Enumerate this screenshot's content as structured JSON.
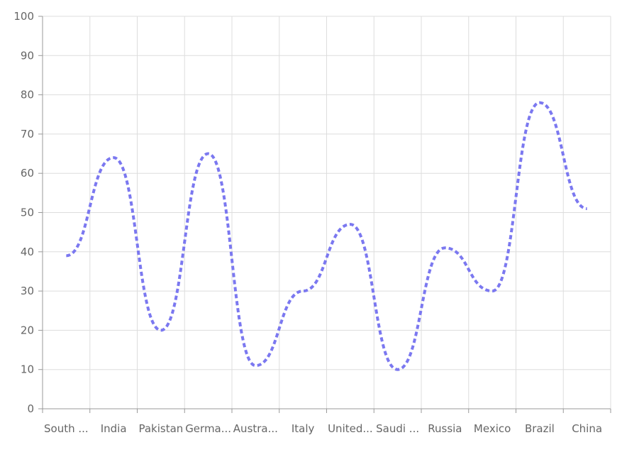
{
  "chart_data": {
    "type": "line",
    "categories": [
      "South ...",
      "India",
      "Pakistan",
      "Germa...",
      "Austra...",
      "Italy",
      "United...",
      "Saudi ...",
      "Russia",
      "Mexico",
      "Brazil",
      "China"
    ],
    "series": [
      {
        "values": [
          39,
          64,
          20,
          65,
          11,
          30,
          47,
          10,
          41,
          30,
          78,
          51
        ],
        "color": "#7b78f0"
      }
    ],
    "y_ticks": [
      "0",
      "10",
      "20",
      "30",
      "40",
      "50",
      "60",
      "70",
      "80",
      "90",
      "100"
    ],
    "ylim": [
      0,
      100
    ],
    "grid": true,
    "line_style": "dashed",
    "curve": "smooth",
    "title": "",
    "xlabel": "",
    "ylabel": ""
  }
}
